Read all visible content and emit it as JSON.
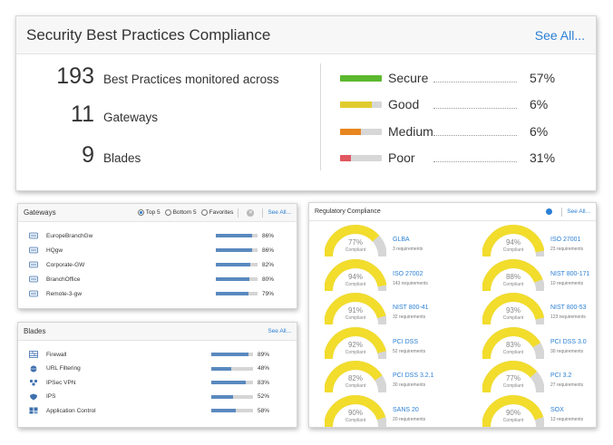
{
  "main": {
    "title": "Security Best Practices Compliance",
    "see_all": "See All...",
    "stats": [
      {
        "value": "193",
        "label": "Best Practices monitored across"
      },
      {
        "value": "11",
        "label": "Gateways"
      },
      {
        "value": "9",
        "label": "Blades"
      }
    ],
    "compliance": [
      {
        "name": "Secure",
        "pct": "57%",
        "fill": 1.0,
        "color": "#5cb82e"
      },
      {
        "name": "Good",
        "pct": "6%",
        "fill": 0.75,
        "color": "#e0cc2e"
      },
      {
        "name": "Medium",
        "pct": "6%",
        "fill": 0.5,
        "color": "#e8861f"
      },
      {
        "name": "Poor",
        "pct": "31%",
        "fill": 0.25,
        "color": "#e0575f"
      }
    ]
  },
  "gateways": {
    "title": "Gateways",
    "filters": [
      "Top 5",
      "Bottom 5",
      "Favorites"
    ],
    "selected_filter": "Top 5",
    "see_all": "See All...",
    "items": [
      {
        "name": "EuropeBranchGw",
        "pct": "86%",
        "value": 0.86
      },
      {
        "name": "HQgw",
        "pct": "86%",
        "value": 0.86
      },
      {
        "name": "Corporate-GW",
        "pct": "82%",
        "value": 0.82
      },
      {
        "name": "BranchOffice",
        "pct": "80%",
        "value": 0.8
      },
      {
        "name": "Remote-3-gw",
        "pct": "79%",
        "value": 0.79
      }
    ]
  },
  "blades": {
    "title": "Blades",
    "see_all": "See All...",
    "items": [
      {
        "name": "Firewall",
        "pct": "89%",
        "value": 0.89,
        "icon": "firewall-icon"
      },
      {
        "name": "URL Filtering",
        "pct": "48%",
        "value": 0.48,
        "icon": "url-filtering-icon"
      },
      {
        "name": "IPSec VPN",
        "pct": "83%",
        "value": 0.83,
        "icon": "vpn-icon"
      },
      {
        "name": "IPS",
        "pct": "52%",
        "value": 0.52,
        "icon": "shield-icon"
      },
      {
        "name": "Application Control",
        "pct": "58%",
        "value": 0.58,
        "icon": "app-control-icon"
      }
    ]
  },
  "regulatory": {
    "title": "Regulatory Compliance",
    "see_all": "See All...",
    "compliant_label": "Compliant",
    "items": [
      {
        "pct": "77%",
        "value": 0.77,
        "name": "GLBA",
        "req": "3 requirements"
      },
      {
        "pct": "94%",
        "value": 0.94,
        "name": "ISO 27001",
        "req": "23 requirements"
      },
      {
        "pct": "94%",
        "value": 0.94,
        "name": "ISO 27002",
        "req": "143 requirements"
      },
      {
        "pct": "88%",
        "value": 0.88,
        "name": "NIST 800-171",
        "req": "10 requirements"
      },
      {
        "pct": "91%",
        "value": 0.91,
        "name": "NIST 800-41",
        "req": "32 requirements"
      },
      {
        "pct": "93%",
        "value": 0.93,
        "name": "NIST 800-53",
        "req": "123 requirements"
      },
      {
        "pct": "92%",
        "value": 0.92,
        "name": "PCI DSS",
        "req": "52 requirements"
      },
      {
        "pct": "83%",
        "value": 0.83,
        "name": "PCI DSS 3.0",
        "req": "30 requirements"
      },
      {
        "pct": "82%",
        "value": 0.82,
        "name": "PCI DSS 3.2.1",
        "req": "30 requirements"
      },
      {
        "pct": "77%",
        "value": 0.77,
        "name": "PCI 3.2",
        "req": "27 requirements"
      },
      {
        "pct": "90%",
        "value": 0.9,
        "name": "SANS 20",
        "req": "20 requirements"
      },
      {
        "pct": "90%",
        "value": 0.9,
        "name": "SOX",
        "req": "13 requirements"
      }
    ],
    "gauge_color": "#f2dc2c",
    "gauge_track": "#d6d6d6"
  }
}
